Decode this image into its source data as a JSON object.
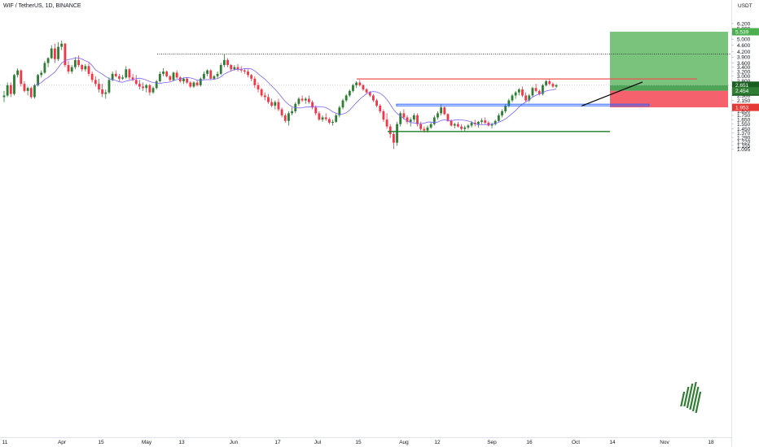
{
  "header": {
    "symbol": "WIF / TetherUS, 1D, BINANCE",
    "currency": "USDT"
  },
  "chart_data": {
    "type": "candlestick",
    "y_scale": "log",
    "ylim": [
      1.07,
      6.5
    ],
    "y_ticks": [
      "6.200",
      "5.800",
      "5.400",
      "5.000",
      "4.600",
      "4.200",
      "3.900",
      "3.600",
      "3.400",
      "3.200",
      "3.000",
      "2.800",
      "2.500",
      "2.300",
      "2.150",
      "2.000",
      "1.850",
      "1.750",
      "1.650",
      "1.550",
      "1.450",
      "1.370",
      "1.290",
      "1.220",
      "1.155",
      "1.095"
    ],
    "x_ticks": [
      "11",
      "Apr",
      "15",
      "May",
      "13",
      "Jun",
      "17",
      "Jul",
      "15",
      "Aug",
      "12",
      "Sep",
      "16",
      "Oct",
      "14",
      "Nov",
      "18"
    ],
    "price_labels": [
      {
        "text": "5.539",
        "value": 5.539,
        "color": "#4caf50"
      },
      {
        "text": "2.651",
        "value": 2.651,
        "color": "#1b5e20"
      },
      {
        "text": "03:56:01",
        "value": 2.651,
        "color": "#1b5e20"
      },
      {
        "text": "2.454",
        "value": 2.454,
        "color": "#2e7d32"
      },
      {
        "text": "1.953",
        "value": 1.953,
        "color": "#e53935"
      }
    ],
    "drawings": {
      "resistance_dotted": 4.08,
      "resistance_red": 2.89,
      "support_box": [
        1.995,
        2.04
      ],
      "support_green": 1.4,
      "entry": 2.454,
      "target": 5.539,
      "stop": 1.953
    },
    "candles": [
      [
        2.25,
        2.45,
        2.1,
        2.3
      ],
      [
        2.3,
        2.75,
        2.25,
        2.65
      ],
      [
        2.65,
        2.75,
        2.25,
        2.35
      ],
      [
        2.35,
        3.1,
        2.3,
        3.05
      ],
      [
        3.05,
        3.35,
        2.95,
        3.25
      ],
      [
        3.25,
        3.3,
        2.6,
        2.7
      ],
      [
        2.7,
        2.8,
        2.4,
        2.45
      ],
      [
        2.45,
        2.6,
        2.3,
        2.55
      ],
      [
        2.55,
        2.6,
        2.2,
        2.25
      ],
      [
        2.25,
        2.7,
        2.2,
        2.65
      ],
      [
        2.65,
        3.1,
        2.6,
        3.05
      ],
      [
        3.05,
        3.25,
        2.95,
        3.15
      ],
      [
        3.15,
        3.7,
        3.1,
        3.6
      ],
      [
        3.6,
        3.9,
        3.4,
        3.85
      ],
      [
        3.85,
        4.6,
        3.8,
        4.4
      ],
      [
        4.4,
        4.7,
        3.6,
        3.8
      ],
      [
        3.8,
        4.8,
        3.7,
        4.5
      ],
      [
        4.5,
        4.9,
        4.3,
        4.7
      ],
      [
        4.7,
        4.75,
        3.4,
        3.5
      ],
      [
        3.5,
        3.7,
        3.1,
        3.2
      ],
      [
        3.2,
        3.5,
        3.1,
        3.4
      ],
      [
        3.4,
        3.9,
        3.3,
        3.75
      ],
      [
        3.75,
        4.0,
        3.4,
        3.5
      ],
      [
        3.5,
        3.55,
        3.2,
        3.3
      ],
      [
        3.3,
        3.55,
        3.2,
        3.45
      ],
      [
        3.45,
        3.6,
        3.0,
        3.1
      ],
      [
        3.1,
        3.2,
        2.75,
        2.85
      ],
      [
        2.85,
        3.0,
        2.6,
        2.7
      ],
      [
        2.7,
        2.9,
        2.4,
        2.5
      ],
      [
        2.5,
        2.7,
        2.25,
        2.35
      ],
      [
        2.35,
        2.5,
        2.2,
        2.4
      ],
      [
        2.4,
        2.95,
        2.35,
        2.85
      ],
      [
        2.85,
        3.2,
        2.8,
        3.1
      ],
      [
        3.1,
        3.25,
        2.95,
        3.0
      ],
      [
        3.0,
        3.1,
        2.8,
        2.9
      ],
      [
        2.9,
        3.05,
        2.85,
        2.95
      ],
      [
        2.95,
        3.45,
        2.9,
        3.3
      ],
      [
        3.3,
        3.35,
        2.85,
        2.95
      ],
      [
        2.95,
        3.1,
        2.8,
        2.85
      ],
      [
        2.85,
        3.05,
        2.65,
        2.7
      ],
      [
        2.7,
        2.85,
        2.5,
        2.6
      ],
      [
        2.6,
        2.75,
        2.45,
        2.55
      ],
      [
        2.55,
        2.7,
        2.4,
        2.65
      ],
      [
        2.65,
        2.7,
        2.3,
        2.4
      ],
      [
        2.4,
        2.6,
        2.35,
        2.55
      ],
      [
        2.55,
        2.85,
        2.5,
        2.8
      ],
      [
        2.8,
        3.2,
        2.75,
        3.1
      ],
      [
        3.1,
        3.35,
        3.0,
        3.2
      ],
      [
        3.2,
        3.25,
        2.95,
        3.0
      ],
      [
        3.0,
        3.05,
        2.8,
        2.85
      ],
      [
        2.85,
        3.2,
        2.8,
        3.15
      ],
      [
        3.15,
        3.25,
        2.9,
        2.95
      ],
      [
        2.95,
        3.0,
        2.75,
        2.8
      ],
      [
        2.8,
        2.95,
        2.7,
        2.9
      ],
      [
        2.9,
        2.95,
        2.7,
        2.75
      ],
      [
        2.75,
        2.8,
        2.55,
        2.6
      ],
      [
        2.6,
        2.8,
        2.55,
        2.75
      ],
      [
        2.75,
        2.85,
        2.6,
        2.65
      ],
      [
        2.65,
        2.95,
        2.6,
        2.9
      ],
      [
        2.9,
        3.2,
        2.85,
        3.1
      ],
      [
        3.1,
        3.3,
        3.0,
        3.25
      ],
      [
        3.25,
        3.3,
        2.85,
        2.9
      ],
      [
        2.9,
        3.05,
        2.85,
        3.0
      ],
      [
        3.0,
        3.2,
        2.9,
        3.1
      ],
      [
        3.1,
        3.6,
        3.05,
        3.5
      ],
      [
        3.5,
        4.05,
        3.4,
        3.75
      ],
      [
        3.75,
        3.85,
        3.4,
        3.5
      ],
      [
        3.5,
        3.55,
        3.2,
        3.3
      ],
      [
        3.3,
        3.5,
        3.25,
        3.4
      ],
      [
        3.4,
        3.55,
        3.2,
        3.3
      ],
      [
        3.3,
        3.45,
        3.15,
        3.25
      ],
      [
        3.25,
        3.35,
        3.1,
        3.2
      ],
      [
        3.2,
        3.3,
        2.95,
        3.05
      ],
      [
        3.05,
        3.1,
        2.8,
        2.9
      ],
      [
        2.9,
        3.0,
        2.55,
        2.65
      ],
      [
        2.65,
        2.75,
        2.4,
        2.5
      ],
      [
        2.5,
        2.55,
        2.25,
        2.3
      ],
      [
        2.3,
        2.4,
        2.15,
        2.25
      ],
      [
        2.25,
        2.35,
        2.05,
        2.1
      ],
      [
        2.1,
        2.2,
        1.95,
        2.0
      ],
      [
        2.0,
        2.15,
        1.9,
        2.1
      ],
      [
        2.1,
        2.2,
        1.85,
        1.9
      ],
      [
        1.9,
        1.95,
        1.7,
        1.75
      ],
      [
        1.75,
        1.8,
        1.58,
        1.62
      ],
      [
        1.62,
        1.85,
        1.52,
        1.8
      ],
      [
        1.8,
        1.95,
        1.75,
        1.85
      ],
      [
        1.85,
        2.1,
        1.8,
        2.05
      ],
      [
        2.05,
        2.25,
        2.0,
        2.2
      ],
      [
        2.2,
        2.3,
        2.1,
        2.15
      ],
      [
        2.15,
        2.25,
        2.05,
        2.2
      ],
      [
        2.2,
        2.3,
        2.05,
        2.1
      ],
      [
        2.1,
        2.15,
        1.9,
        1.95
      ],
      [
        1.95,
        2.0,
        1.75,
        1.8
      ],
      [
        1.8,
        1.85,
        1.62,
        1.65
      ],
      [
        1.65,
        1.75,
        1.6,
        1.7
      ],
      [
        1.7,
        1.8,
        1.62,
        1.66
      ],
      [
        1.66,
        1.7,
        1.55,
        1.58
      ],
      [
        1.58,
        1.65,
        1.52,
        1.6
      ],
      [
        1.6,
        1.8,
        1.58,
        1.75
      ],
      [
        1.75,
        2.0,
        1.7,
        1.95
      ],
      [
        1.95,
        2.2,
        1.9,
        2.15
      ],
      [
        2.15,
        2.35,
        2.1,
        2.3
      ],
      [
        2.3,
        2.5,
        2.25,
        2.45
      ],
      [
        2.45,
        2.7,
        2.4,
        2.65
      ],
      [
        2.65,
        2.8,
        2.55,
        2.75
      ],
      [
        2.75,
        2.85,
        2.6,
        2.65
      ],
      [
        2.65,
        2.7,
        2.45,
        2.5
      ],
      [
        2.5,
        2.55,
        2.35,
        2.4
      ],
      [
        2.4,
        2.45,
        2.25,
        2.3
      ],
      [
        2.3,
        2.35,
        2.1,
        2.15
      ],
      [
        2.15,
        2.2,
        1.95,
        2.0
      ],
      [
        2.0,
        2.05,
        1.8,
        1.85
      ],
      [
        1.85,
        1.9,
        1.6,
        1.65
      ],
      [
        1.65,
        1.8,
        1.45,
        1.5
      ],
      [
        1.5,
        1.55,
        1.28,
        1.35
      ],
      [
        1.35,
        1.4,
        1.1,
        1.2
      ],
      [
        1.2,
        1.6,
        1.15,
        1.55
      ],
      [
        1.55,
        1.85,
        1.5,
        1.8
      ],
      [
        1.8,
        1.9,
        1.65,
        1.7
      ],
      [
        1.7,
        1.75,
        1.55,
        1.6
      ],
      [
        1.6,
        1.7,
        1.5,
        1.65
      ],
      [
        1.65,
        1.8,
        1.6,
        1.75
      ],
      [
        1.75,
        1.8,
        1.5,
        1.55
      ],
      [
        1.55,
        1.6,
        1.42,
        1.45
      ],
      [
        1.45,
        1.5,
        1.38,
        1.42
      ],
      [
        1.42,
        1.52,
        1.38,
        1.48
      ],
      [
        1.48,
        1.6,
        1.45,
        1.55
      ],
      [
        1.55,
        1.75,
        1.52,
        1.7
      ],
      [
        1.7,
        1.85,
        1.65,
        1.8
      ],
      [
        1.8,
        2.05,
        1.75,
        1.95
      ],
      [
        1.95,
        1.98,
        1.75,
        1.78
      ],
      [
        1.78,
        1.8,
        1.6,
        1.62
      ],
      [
        1.62,
        1.65,
        1.5,
        1.52
      ],
      [
        1.52,
        1.58,
        1.46,
        1.55
      ],
      [
        1.55,
        1.6,
        1.48,
        1.5
      ],
      [
        1.5,
        1.55,
        1.42,
        1.45
      ],
      [
        1.45,
        1.52,
        1.4,
        1.48
      ],
      [
        1.48,
        1.55,
        1.44,
        1.52
      ],
      [
        1.52,
        1.62,
        1.48,
        1.58
      ],
      [
        1.58,
        1.65,
        1.5,
        1.55
      ],
      [
        1.55,
        1.62,
        1.48,
        1.6
      ],
      [
        1.6,
        1.68,
        1.55,
        1.63
      ],
      [
        1.63,
        1.7,
        1.55,
        1.58
      ],
      [
        1.58,
        1.62,
        1.5,
        1.52
      ],
      [
        1.52,
        1.58,
        1.46,
        1.55
      ],
      [
        1.55,
        1.65,
        1.52,
        1.62
      ],
      [
        1.62,
        1.8,
        1.6,
        1.75
      ],
      [
        1.75,
        1.9,
        1.7,
        1.85
      ],
      [
        1.85,
        2.05,
        1.8,
        2.0
      ],
      [
        2.0,
        2.2,
        1.95,
        2.15
      ],
      [
        2.15,
        2.35,
        2.1,
        2.3
      ],
      [
        2.3,
        2.45,
        2.2,
        2.4
      ],
      [
        2.4,
        2.55,
        2.3,
        2.5
      ],
      [
        2.5,
        2.6,
        2.25,
        2.3
      ],
      [
        2.3,
        2.4,
        2.1,
        2.15
      ],
      [
        2.15,
        2.35,
        2.1,
        2.3
      ],
      [
        2.3,
        2.6,
        2.25,
        2.55
      ],
      [
        2.55,
        2.7,
        2.4,
        2.45
      ],
      [
        2.45,
        2.5,
        2.3,
        2.35
      ],
      [
        2.35,
        2.7,
        2.3,
        2.65
      ],
      [
        2.65,
        2.85,
        2.6,
        2.8
      ],
      [
        2.8,
        2.9,
        2.65,
        2.7
      ],
      [
        2.7,
        2.75,
        2.55,
        2.6
      ],
      [
        2.6,
        2.7,
        2.55,
        2.651
      ]
    ]
  }
}
